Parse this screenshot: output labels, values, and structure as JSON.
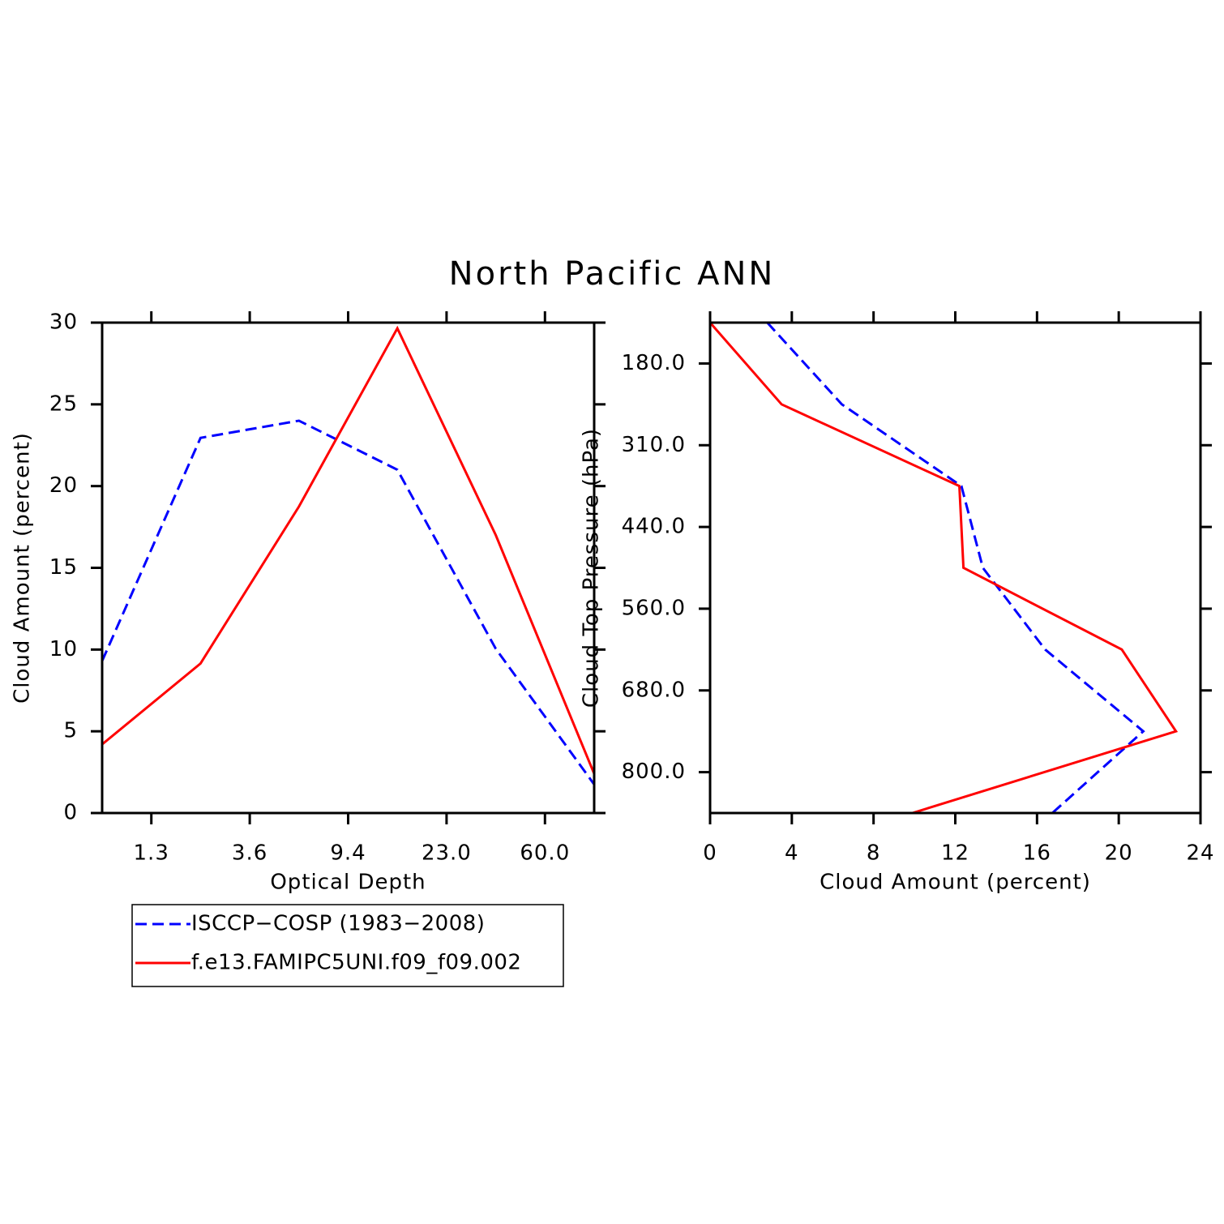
{
  "title": "North Pacific ANN",
  "chart_data": [
    {
      "type": "line",
      "orientation": "vertical",
      "x_label": "Optical Depth",
      "y_label": "Cloud Amount (percent)",
      "x": [
        0,
        1,
        2,
        3,
        4,
        5
      ],
      "xlim": [
        0,
        5
      ],
      "xticks": [
        {
          "value": 0.5,
          "label": "1.3"
        },
        {
          "value": 1.5,
          "label": "3.6"
        },
        {
          "value": 2.5,
          "label": "9.4"
        },
        {
          "value": 3.5,
          "label": "23.0"
        },
        {
          "value": 4.5,
          "label": "60.0"
        }
      ],
      "ylim": [
        0,
        30
      ],
      "yticks": [
        0,
        5,
        10,
        15,
        20,
        25,
        30
      ],
      "series": [
        {
          "name": "ISCCP−COSP (1983−2008)",
          "color": "#0000ff",
          "dashed": true,
          "values": [
            9.3,
            22.95,
            24.0,
            21.0,
            10.05,
            1.75
          ]
        },
        {
          "name": "f.e13.FAMIPC5UNI.f09_f09.002",
          "color": "#ff0000",
          "dashed": false,
          "values": [
            4.2,
            9.15,
            18.75,
            29.65,
            17.0,
            2.4
          ]
        }
      ]
    },
    {
      "type": "line",
      "orientation": "horizontal",
      "x_label": "Cloud Amount (percent)",
      "y_label": "Cloud Top Pressure (hPa)",
      "y": [
        0,
        1,
        2,
        3,
        4,
        5,
        6
      ],
      "ylim": [
        6,
        0
      ],
      "yticks": [
        {
          "value": 0.5,
          "label": "180.0"
        },
        {
          "value": 1.5,
          "label": "310.0"
        },
        {
          "value": 2.5,
          "label": "440.0"
        },
        {
          "value": 3.5,
          "label": "560.0"
        },
        {
          "value": 4.5,
          "label": "680.0"
        },
        {
          "value": 5.5,
          "label": "800.0"
        }
      ],
      "xlim": [
        0,
        24
      ],
      "xticks": [
        0,
        4,
        8,
        12,
        16,
        20,
        24
      ],
      "series": [
        {
          "name": "ISCCP−COSP (1983−2008)",
          "color": "#0000ff",
          "dashed": true,
          "values": [
            2.8,
            6.45,
            12.3,
            13.35,
            16.4,
            21.2,
            16.75
          ]
        },
        {
          "name": "f.e13.FAMIPC5UNI.f09_f09.002",
          "color": "#ff0000",
          "dashed": false,
          "values": [
            0,
            3.5,
            12.2,
            12.4,
            20.15,
            22.8,
            9.9
          ]
        }
      ]
    }
  ]
}
